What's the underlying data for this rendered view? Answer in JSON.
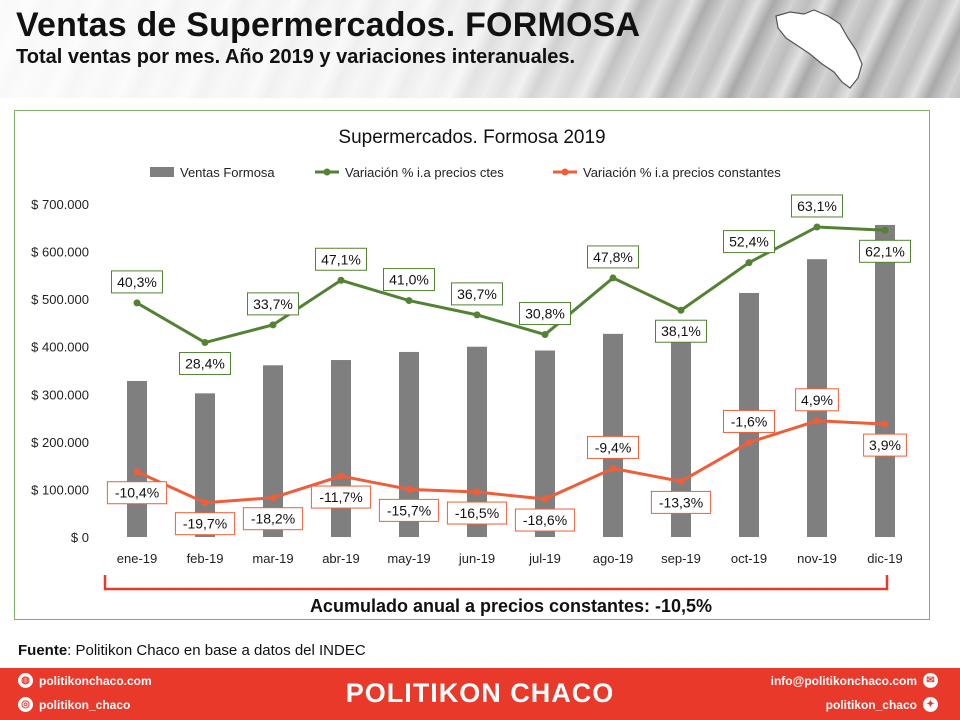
{
  "header": {
    "title": "Ventas de Supermercados. FORMOSA",
    "subtitle": "Total ventas por mes. Año 2019 y variaciones interanuales."
  },
  "chart_data": {
    "type": "bar",
    "title": "Supermercados. Formosa 2019",
    "categories": [
      "ene-19",
      "feb-19",
      "mar-19",
      "abr-19",
      "may-19",
      "jun-19",
      "jul-19",
      "ago-19",
      "sep-19",
      "oct-19",
      "nov-19",
      "dic-19"
    ],
    "y_axis": {
      "min": 0,
      "max": 700000,
      "ticks": [
        "$ 0",
        "$ 100.000",
        "$ 200.000",
        "$ 300.000",
        "$ 400.000",
        "$ 500.000",
        "$ 600.000",
        "$ 700.000"
      ]
    },
    "legend_position": "top",
    "series": [
      {
        "name": "Ventas Formosa",
        "kind": "bar",
        "color": "#7f7f7f",
        "values": [
          328000,
          302000,
          361000,
          372000,
          389000,
          400000,
          392000,
          427000,
          415000,
          513000,
          584000,
          656000
        ]
      },
      {
        "name": "Variación % i.a precios ctes",
        "kind": "line",
        "color": "#548235",
        "values": [
          40.3,
          28.4,
          33.7,
          47.1,
          41.0,
          36.7,
          30.8,
          47.8,
          38.1,
          52.4,
          63.1,
          62.1
        ],
        "labels": [
          "40,3%",
          "28,4%",
          "33,7%",
          "47,1%",
          "41,0%",
          "36,7%",
          "30,8%",
          "47,8%",
          "38,1%",
          "52,4%",
          "63,1%",
          "62,1%"
        ]
      },
      {
        "name": "Variación % i.a precios constantes",
        "kind": "line",
        "color": "#ed5f3b",
        "values": [
          -10.4,
          -19.7,
          -18.2,
          -11.7,
          -15.7,
          -16.5,
          -18.6,
          -9.4,
          -13.3,
          -1.6,
          4.9,
          3.9
        ],
        "labels": [
          "-10,4%",
          "-19,7%",
          "-18,2%",
          "-11,7%",
          "-15,7%",
          "-16,5%",
          "-18,6%",
          "-9,4%",
          "-13,3%",
          "-1,6%",
          "4,9%",
          "3,9%"
        ]
      }
    ],
    "annotation": "Acumulado anual a precios constantes: -10,5%"
  },
  "source": {
    "label": "Fuente",
    "text": ": Politikon Chaco en base a datos del INDEC"
  },
  "footer": {
    "brand": "POLITIKON CHACO",
    "website": "politikonchaco.com",
    "instagram": "politikon_chaco",
    "email": "info@politikonchaco.com",
    "twitter": "politikon_chaco",
    "icons": [
      "globe-icon",
      "instagram-icon",
      "mail-icon",
      "twitter-icon"
    ]
  }
}
